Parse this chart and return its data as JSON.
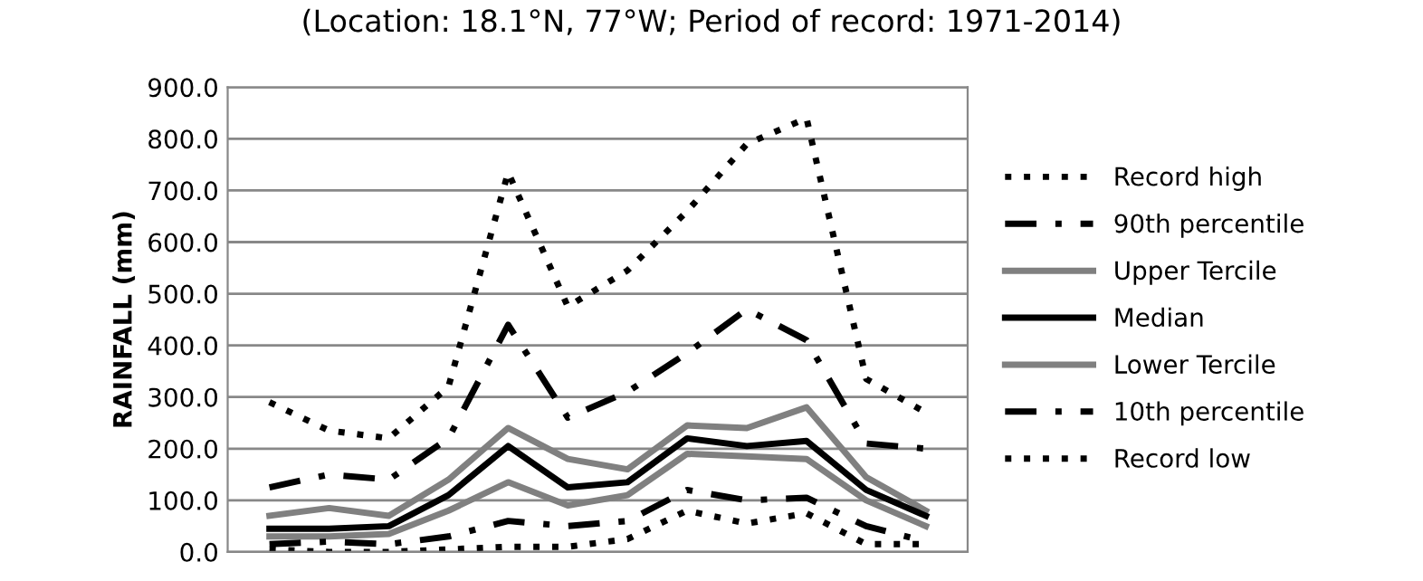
{
  "chart_data": {
    "type": "line",
    "title": "(Location: 18.1°N, 77°W; Period of record: 1971-2014)",
    "ylabel": "RAINFALL (mm)",
    "categories": [
      null,
      null,
      null,
      null,
      null,
      null,
      null,
      null,
      null,
      null,
      null,
      null
    ],
    "ylim": [
      0,
      900
    ],
    "yticks": [
      {
        "value": 0,
        "label": "0.0"
      },
      {
        "value": 100,
        "label": "100.0"
      },
      {
        "value": 200,
        "label": "200.0"
      },
      {
        "value": 300,
        "label": "300.0"
      },
      {
        "value": 400,
        "label": "400.0"
      },
      {
        "value": 500,
        "label": "500.0"
      },
      {
        "value": 600,
        "label": "600.0"
      },
      {
        "value": 700,
        "label": "700.0"
      },
      {
        "value": 800,
        "label": "800.0"
      },
      {
        "value": 900,
        "label": "900.0"
      }
    ],
    "grid": "y",
    "legend": "right",
    "tick_labels": "y",
    "series": [
      {
        "name": "Record high",
        "color": "#000000",
        "line_style": "dotted",
        "values": [
          290,
          235,
          220,
          320,
          735,
          475,
          545,
          660,
          790,
          840,
          335,
          270
        ]
      },
      {
        "name": "90th percentile",
        "color": "#000000",
        "line_style": "dashdot",
        "values": [
          125,
          150,
          140,
          220,
          440,
          260,
          310,
          385,
          470,
          410,
          210,
          200
        ]
      },
      {
        "name": "Upper Tercile",
        "color": "#808080",
        "line_style": "solid",
        "values": [
          70,
          85,
          70,
          140,
          240,
          180,
          160,
          245,
          240,
          280,
          145,
          80
        ]
      },
      {
        "name": "Median",
        "color": "#000000",
        "line_style": "solid",
        "values": [
          45,
          45,
          50,
          110,
          205,
          125,
          135,
          220,
          205,
          215,
          120,
          70
        ]
      },
      {
        "name": "Lower Tercile",
        "color": "#808080",
        "line_style": "solid",
        "values": [
          30,
          30,
          35,
          80,
          135,
          90,
          110,
          190,
          185,
          180,
          100,
          50
        ]
      },
      {
        "name": "10th percentile",
        "color": "#000000",
        "line_style": "dashdot",
        "values": [
          15,
          20,
          15,
          30,
          60,
          50,
          60,
          120,
          100,
          105,
          50,
          20
        ]
      },
      {
        "name": "Record low",
        "color": "#000000",
        "line_style": "dotted",
        "values": [
          5,
          0,
          0,
          5,
          10,
          10,
          25,
          80,
          55,
          75,
          15,
          15
        ]
      }
    ]
  }
}
